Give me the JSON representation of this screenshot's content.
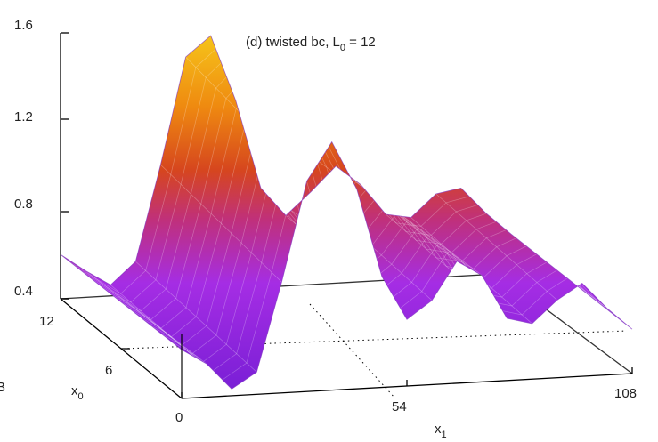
{
  "chart_data": {
    "type": "surface",
    "title_prefix": "(d) twisted bc, L",
    "title_sub": "0",
    "title_suffix": " = 12",
    "z_ticks": [
      "0.4",
      "0.8",
      "1.2",
      "1.6"
    ],
    "x0_ticks": [
      "0",
      "6",
      "12"
    ],
    "x1_ticks": [
      "0",
      "54",
      "108"
    ],
    "xlabel": "x",
    "xlabel_sub": "1",
    "ylabel": "x",
    "ylabel_sub": "0",
    "stray_label": "B",
    "x0_range": [
      0,
      12
    ],
    "x1_range": [
      0,
      108
    ],
    "zlim": [
      0.4,
      1.6
    ],
    "profile_x1": [
      0,
      6,
      12,
      18,
      24,
      30,
      36,
      42,
      48,
      54,
      60,
      66,
      72,
      78,
      84,
      90,
      96,
      102,
      108
    ],
    "profile_near_edge_z": [
      0.62,
      0.55,
      0.43,
      0.5,
      0.9,
      1.35,
      1.52,
      1.3,
      0.9,
      0.7,
      0.78,
      0.95,
      0.88,
      0.68,
      0.65,
      0.75,
      0.82,
      0.7,
      0.6
    ],
    "profile_far_edge_z": [
      0.6,
      0.52,
      0.45,
      0.55,
      0.98,
      1.46,
      1.55,
      1.25,
      0.85,
      0.72,
      0.82,
      0.93,
      0.84,
      0.7,
      0.68,
      0.78,
      0.8,
      0.68,
      0.58
    ],
    "colormap": [
      "#7a1fd6",
      "#b42ee6",
      "#c0307a",
      "#d6461e",
      "#ef8a10",
      "#f6c41a"
    ]
  }
}
